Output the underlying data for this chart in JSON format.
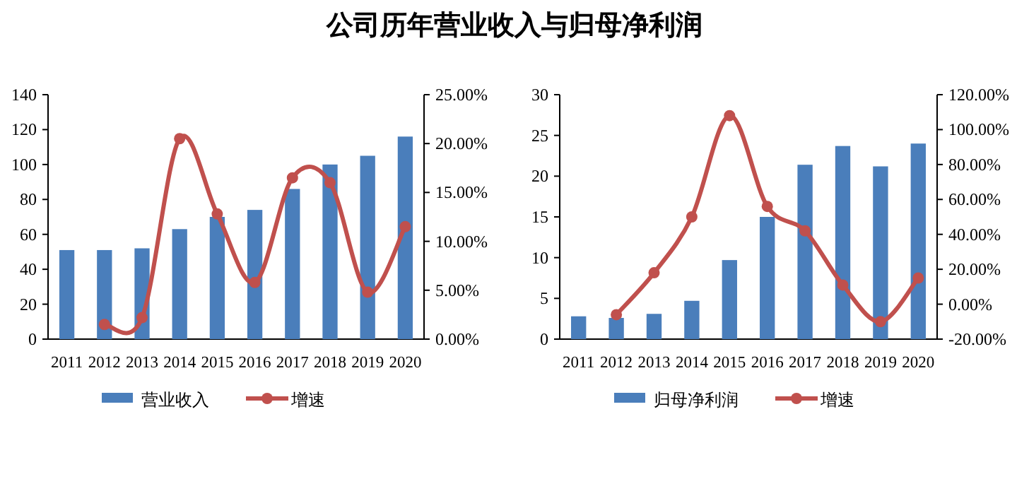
{
  "chart_data": [
    {
      "type": "bar",
      "title": "公司历年营业收入与归母净利润",
      "categories": [
        "2011",
        "2012",
        "2013",
        "2014",
        "2015",
        "2016",
        "2017",
        "2018",
        "2019",
        "2020"
      ],
      "series": [
        {
          "name": "营业收入",
          "color": "#4a7ebb",
          "values": [
            51,
            51,
            52,
            63,
            70,
            74,
            86,
            100,
            105,
            116
          ]
        },
        {
          "type": "line",
          "name": "增速",
          "color": "#c0504d",
          "axis": "y2",
          "values": [
            null,
            1.5,
            2.2,
            20.5,
            12.8,
            5.8,
            16.5,
            16.0,
            4.8,
            11.5
          ]
        }
      ],
      "ylim": [
        0,
        140
      ],
      "yticks": [
        0,
        20,
        40,
        60,
        80,
        100,
        120,
        140
      ],
      "y2lim": [
        0,
        25
      ],
      "y2ticks": [
        {
          "value": 0,
          "label": "0.00%"
        },
        {
          "value": 5,
          "label": "5.00%"
        },
        {
          "value": 10,
          "label": "10.00%"
        },
        {
          "value": 15,
          "label": "15.00%"
        },
        {
          "value": 20,
          "label": "20.00%"
        },
        {
          "value": 25,
          "label": "25.00%"
        }
      ],
      "marker": "circle",
      "legend": "bottom"
    },
    {
      "type": "bar",
      "categories": [
        "2011",
        "2012",
        "2013",
        "2014",
        "2015",
        "2016",
        "2017",
        "2018",
        "2019",
        "2020"
      ],
      "series": [
        {
          "name": "归母净利润",
          "color": "#4a7ebb",
          "values": [
            2.8,
            2.6,
            3.1,
            4.7,
            9.7,
            15.0,
            21.4,
            23.7,
            21.2,
            24.0
          ]
        },
        {
          "type": "line",
          "name": "增速",
          "color": "#c0504d",
          "axis": "y2",
          "values": [
            null,
            -6,
            18,
            50,
            108,
            56,
            42,
            11,
            -10,
            15
          ]
        }
      ],
      "ylim": [
        0,
        30
      ],
      "yticks": [
        0,
        5,
        10,
        15,
        20,
        25,
        30
      ],
      "y2lim": [
        -20,
        120
      ],
      "y2ticks": [
        {
          "value": -20,
          "label": "-20.00%"
        },
        {
          "value": 0,
          "label": "0.00%"
        },
        {
          "value": 20,
          "label": "20.00%"
        },
        {
          "value": 40,
          "label": "40.00%"
        },
        {
          "value": 60,
          "label": "60.00%"
        },
        {
          "value": 80,
          "label": "80.00%"
        },
        {
          "value": 100,
          "label": "100.00%"
        },
        {
          "value": 120,
          "label": "120.00%"
        }
      ],
      "marker": "circle",
      "legend": "bottom"
    }
  ]
}
